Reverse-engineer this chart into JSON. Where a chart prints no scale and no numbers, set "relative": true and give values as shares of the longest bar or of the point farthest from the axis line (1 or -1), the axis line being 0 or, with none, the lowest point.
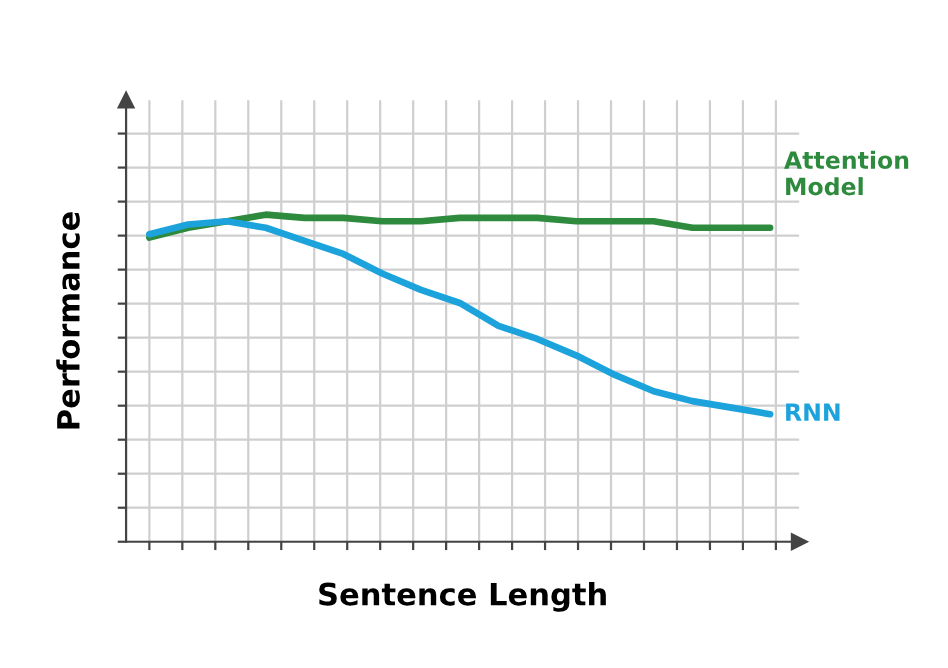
{
  "chart_data": {
    "type": "line",
    "relative": true,
    "xlabel": "Sentence Length",
    "ylabel": "Performance",
    "grid": true,
    "legend": false,
    "categories": [
      null,
      null,
      null,
      null,
      null,
      null,
      null,
      null,
      null,
      null,
      null,
      null,
      null,
      null,
      null,
      null,
      null
    ],
    "series": [
      {
        "name": "Attention Model",
        "color": "#2e8b3e",
        "values": [
          0.93,
          0.96,
          0.98,
          1,
          0.99,
          0.99,
          0.98,
          0.98,
          0.99,
          0.99,
          0.99,
          0.98,
          0.98,
          0.98,
          0.96,
          0.96,
          0.96
        ]
      },
      {
        "name": "RNN",
        "color": "#1ca3dc",
        "values": [
          0.94,
          0.97,
          0.98,
          0.96,
          0.92,
          0.88,
          0.82,
          0.77,
          0.73,
          0.66,
          0.62,
          0.57,
          0.51,
          0.46,
          0.43,
          0.41,
          0.39
        ]
      }
    ]
  }
}
